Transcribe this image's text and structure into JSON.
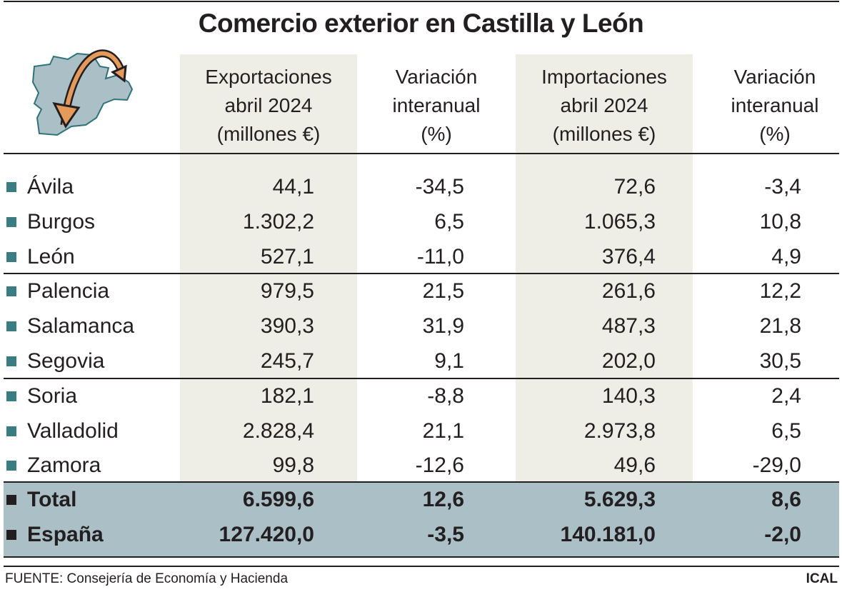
{
  "title": "Comercio exterior en Castilla y León",
  "icon": "castilla-leon-map-with-trade-arrows",
  "colors": {
    "header_shade": "#eeede6",
    "total_bg": "#aabfc6",
    "bullet": "#3a7d80",
    "map": "#aabfc6",
    "arrow": "#e39a5a"
  },
  "headers": [
    [
      "Exportaciones",
      "abril 2024",
      "(millones €)"
    ],
    [
      "Variación",
      "interanual",
      "(%)"
    ],
    [
      "Importaciones",
      "abril 2024",
      "(millones €)"
    ],
    [
      "Variación",
      "interanual",
      "(%)"
    ]
  ],
  "chart_data": {
    "type": "table",
    "title": "Comercio exterior en Castilla y León",
    "columns": [
      "Exportaciones abril 2024 (millones €)",
      "Variación interanual (%)",
      "Importaciones abril 2024 (millones €)",
      "Variación interanual (%)"
    ],
    "rows": [
      {
        "name": "Ávila",
        "values": [
          "44,1",
          "-34,5",
          "72,6",
          "-3,4"
        ]
      },
      {
        "name": "Burgos",
        "values": [
          "1.302,2",
          "6,5",
          "1.065,3",
          "10,8"
        ]
      },
      {
        "name": "León",
        "values": [
          "527,1",
          "-11,0",
          "376,4",
          "4,9"
        ]
      },
      {
        "name": "Palencia",
        "values": [
          "979,5",
          "21,5",
          "261,6",
          "12,2"
        ]
      },
      {
        "name": "Salamanca",
        "values": [
          "390,3",
          "31,9",
          "487,3",
          "21,8"
        ]
      },
      {
        "name": "Segovia",
        "values": [
          "245,7",
          "9,1",
          "202,0",
          "30,5"
        ]
      },
      {
        "name": "Soria",
        "values": [
          "182,1",
          "-8,8",
          "140,3",
          "2,4"
        ]
      },
      {
        "name": "Valladolid",
        "values": [
          "2.828,4",
          "21,1",
          "2.973,8",
          "6,5"
        ]
      },
      {
        "name": "Zamora",
        "values": [
          "99,8",
          "-12,6",
          "49,6",
          "-29,0"
        ]
      }
    ],
    "totals": [
      {
        "name": "Total",
        "values": [
          "6.599,6",
          "12,6",
          "5.629,3",
          "8,6"
        ]
      },
      {
        "name": "España",
        "values": [
          "127.420,0",
          "-3,5",
          "140.181,0",
          "-2,0"
        ]
      }
    ]
  },
  "footer": {
    "source": "FUENTE: Consejería de Economía y Hacienda",
    "credit": "ICAL"
  }
}
